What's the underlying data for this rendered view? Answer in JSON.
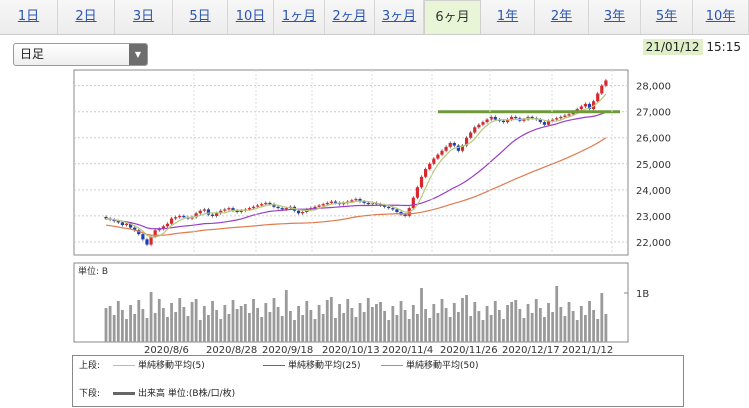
{
  "tabs": [
    {
      "label": "1日"
    },
    {
      "label": "2日"
    },
    {
      "label": "3日"
    },
    {
      "label": "5日"
    },
    {
      "label": "10日"
    },
    {
      "label": "1ヶ月"
    },
    {
      "label": "2ヶ月"
    },
    {
      "label": "3ヶ月"
    },
    {
      "label": "6ヶ月",
      "active": true
    },
    {
      "label": "1年"
    },
    {
      "label": "2年"
    },
    {
      "label": "3年"
    },
    {
      "label": "5年"
    },
    {
      "label": "10年"
    }
  ],
  "select": {
    "value": "日足"
  },
  "datetime": {
    "date": "21/01/12",
    "time": "15:15"
  },
  "colors": {
    "ma5": "#b8c878",
    "ma25": "#9a3fc4",
    "ma50": "#e07a50",
    "up": "#d8282e",
    "down": "#1a3fb8",
    "volume": "#9a9a9a",
    "resistance": "#6e9a3a"
  },
  "chart_data": {
    "type": "candlestick",
    "price_ticks": [
      "28,000",
      "27,000",
      "26,000",
      "25,000",
      "24,000",
      "23,000",
      "22,000"
    ],
    "price_range": [
      21500,
      28600
    ],
    "x_labels": [
      "2020/8/6",
      "2020/8/28",
      "2020/9/18",
      "2020/10/13",
      "2020/11/4",
      "2020/11/26",
      "2020/12/17",
      "2021/1/12"
    ],
    "volume_unit_label": "単位: B",
    "volume_tick": "1B",
    "close": [
      22900,
      22850,
      22800,
      22750,
      22650,
      22700,
      22550,
      22450,
      22300,
      22100,
      21900,
      22200,
      22450,
      22500,
      22600,
      22700,
      22900,
      22950,
      23000,
      22950,
      22900,
      22950,
      23100,
      23200,
      23250,
      23050,
      23000,
      23100,
      23200,
      23250,
      23300,
      23200,
      23150,
      23200,
      23250,
      23300,
      23350,
      23400,
      23450,
      23500,
      23450,
      23350,
      23300,
      23250,
      23300,
      23350,
      23200,
      23100,
      23150,
      23250,
      23300,
      23350,
      23400,
      23450,
      23500,
      23550,
      23500,
      23450,
      23500,
      23550,
      23600,
      23650,
      23550,
      23500,
      23450,
      23500,
      23450,
      23400,
      23350,
      23300,
      23250,
      23150,
      23050,
      23000,
      23300,
      23700,
      24100,
      24500,
      24800,
      25000,
      25200,
      25350,
      25500,
      25650,
      25800,
      25700,
      25500,
      25700,
      26000,
      26200,
      26400,
      26500,
      26600,
      26700,
      26800,
      26700,
      26650,
      26600,
      26700,
      26800,
      26750,
      26650,
      26700,
      26800,
      26750,
      26700,
      26600,
      26500,
      26650,
      26700,
      26750,
      26800,
      26850,
      26900,
      27000,
      27100,
      27200,
      27300,
      27100,
      27400,
      27700,
      28000,
      28200
    ],
    "series": [
      {
        "name": "単純移動平均(5)",
        "color_key": "ma5"
      },
      {
        "name": "単純移動平均(25)",
        "color_key": "ma25"
      },
      {
        "name": "単純移動平均(50)",
        "color_key": "ma50"
      }
    ],
    "resistance_line": 27000
  },
  "legend": {
    "upper_label": "上段:",
    "lower_label": "下段:",
    "ma5": "単純移動平均(5)",
    "ma25": "単純移動平均(25)",
    "ma50": "単純移動平均(50)",
    "volume": "出来高 単位:(B株/口/枚)"
  }
}
